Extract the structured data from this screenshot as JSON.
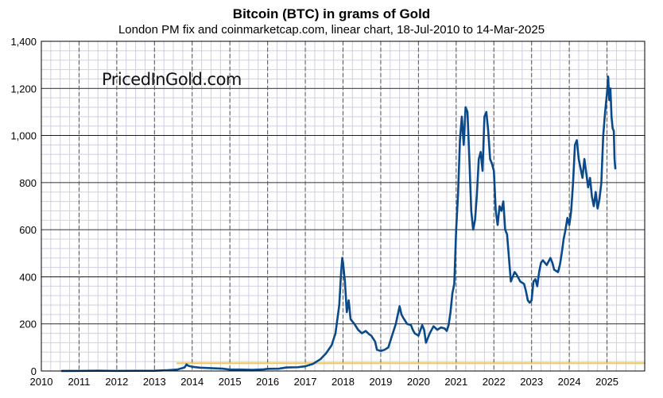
{
  "chart_data": {
    "type": "line",
    "title": "Bitcoin (BTC) in grams of Gold",
    "subtitle": "London PM fix and coinmarketcap.com, linear chart, 18-Jul-2010 to 14-Mar-2025",
    "watermark": "PricedInGold.com",
    "xlim": [
      2010.0,
      2026.0
    ],
    "ylim": [
      0,
      1400
    ],
    "x_ticks": [
      "2010",
      "2011",
      "2012",
      "2013",
      "2014",
      "2015",
      "2016",
      "2017",
      "2018",
      "2019",
      "2020",
      "2021",
      "2022",
      "2023",
      "2024",
      "2025"
    ],
    "y_ticks": [
      "0",
      "200",
      "400",
      "600",
      "800",
      "1,000",
      "1,200",
      "1,400"
    ],
    "grid": true,
    "legend": "none",
    "series": [
      {
        "color": "#0a4a8a",
        "points": [
          [
            2010.55,
            0.2
          ],
          [
            2011.0,
            0.4
          ],
          [
            2011.45,
            1.2
          ],
          [
            2011.7,
            0.8
          ],
          [
            2012.0,
            0.4
          ],
          [
            2012.5,
            0.8
          ],
          [
            2013.0,
            1.2
          ],
          [
            2013.3,
            3
          ],
          [
            2013.6,
            6
          ],
          [
            2013.8,
            15
          ],
          [
            2013.85,
            28
          ],
          [
            2013.9,
            22
          ],
          [
            2014.0,
            18
          ],
          [
            2014.2,
            14
          ],
          [
            2014.5,
            12
          ],
          [
            2014.8,
            10
          ],
          [
            2015.0,
            6
          ],
          [
            2015.3,
            6
          ],
          [
            2015.6,
            5
          ],
          [
            2015.9,
            7
          ],
          [
            2016.0,
            9
          ],
          [
            2016.3,
            10
          ],
          [
            2016.5,
            15
          ],
          [
            2016.8,
            16
          ],
          [
            2017.0,
            20
          ],
          [
            2017.2,
            30
          ],
          [
            2017.4,
            50
          ],
          [
            2017.55,
            75
          ],
          [
            2017.7,
            110
          ],
          [
            2017.8,
            160
          ],
          [
            2017.9,
            280
          ],
          [
            2017.95,
            420
          ],
          [
            2017.98,
            480
          ],
          [
            2018.0,
            460
          ],
          [
            2018.05,
            380
          ],
          [
            2018.1,
            250
          ],
          [
            2018.15,
            300
          ],
          [
            2018.2,
            220
          ],
          [
            2018.3,
            200
          ],
          [
            2018.4,
            175
          ],
          [
            2018.5,
            160
          ],
          [
            2018.6,
            170
          ],
          [
            2018.7,
            155
          ],
          [
            2018.75,
            150
          ],
          [
            2018.85,
            125
          ],
          [
            2018.9,
            90
          ],
          [
            2019.0,
            85
          ],
          [
            2019.1,
            90
          ],
          [
            2019.2,
            100
          ],
          [
            2019.3,
            150
          ],
          [
            2019.4,
            200
          ],
          [
            2019.5,
            275
          ],
          [
            2019.55,
            240
          ],
          [
            2019.6,
            225
          ],
          [
            2019.7,
            200
          ],
          [
            2019.8,
            195
          ],
          [
            2019.85,
            175
          ],
          [
            2019.9,
            160
          ],
          [
            2020.0,
            150
          ],
          [
            2020.1,
            195
          ],
          [
            2020.15,
            175
          ],
          [
            2020.2,
            120
          ],
          [
            2020.3,
            160
          ],
          [
            2020.4,
            190
          ],
          [
            2020.5,
            175
          ],
          [
            2020.6,
            185
          ],
          [
            2020.7,
            180
          ],
          [
            2020.75,
            170
          ],
          [
            2020.8,
            195
          ],
          [
            2020.85,
            250
          ],
          [
            2020.9,
            330
          ],
          [
            2020.95,
            370
          ],
          [
            2021.0,
            600
          ],
          [
            2021.05,
            750
          ],
          [
            2021.1,
            980
          ],
          [
            2021.15,
            1080
          ],
          [
            2021.2,
            960
          ],
          [
            2021.25,
            1120
          ],
          [
            2021.3,
            1100
          ],
          [
            2021.35,
            900
          ],
          [
            2021.4,
            680
          ],
          [
            2021.45,
            600
          ],
          [
            2021.5,
            640
          ],
          [
            2021.55,
            750
          ],
          [
            2021.6,
            900
          ],
          [
            2021.65,
            930
          ],
          [
            2021.7,
            850
          ],
          [
            2021.75,
            1080
          ],
          [
            2021.8,
            1100
          ],
          [
            2021.85,
            1020
          ],
          [
            2021.9,
            900
          ],
          [
            2021.95,
            880
          ],
          [
            2022.0,
            850
          ],
          [
            2022.05,
            680
          ],
          [
            2022.1,
            620
          ],
          [
            2022.15,
            700
          ],
          [
            2022.2,
            680
          ],
          [
            2022.25,
            720
          ],
          [
            2022.3,
            600
          ],
          [
            2022.35,
            580
          ],
          [
            2022.4,
            480
          ],
          [
            2022.45,
            380
          ],
          [
            2022.5,
            400
          ],
          [
            2022.55,
            420
          ],
          [
            2022.6,
            410
          ],
          [
            2022.65,
            395
          ],
          [
            2022.7,
            380
          ],
          [
            2022.75,
            375
          ],
          [
            2022.8,
            370
          ],
          [
            2022.85,
            340
          ],
          [
            2022.9,
            300
          ],
          [
            2022.95,
            290
          ],
          [
            2023.0,
            300
          ],
          [
            2023.05,
            380
          ],
          [
            2023.1,
            390
          ],
          [
            2023.15,
            360
          ],
          [
            2023.2,
            420
          ],
          [
            2023.25,
            460
          ],
          [
            2023.3,
            470
          ],
          [
            2023.4,
            450
          ],
          [
            2023.5,
            480
          ],
          [
            2023.55,
            460
          ],
          [
            2023.6,
            430
          ],
          [
            2023.7,
            420
          ],
          [
            2023.75,
            450
          ],
          [
            2023.8,
            500
          ],
          [
            2023.85,
            560
          ],
          [
            2023.9,
            600
          ],
          [
            2023.95,
            650
          ],
          [
            2024.0,
            620
          ],
          [
            2024.05,
            680
          ],
          [
            2024.1,
            800
          ],
          [
            2024.15,
            960
          ],
          [
            2024.2,
            980
          ],
          [
            2024.25,
            900
          ],
          [
            2024.3,
            860
          ],
          [
            2024.35,
            820
          ],
          [
            2024.4,
            900
          ],
          [
            2024.45,
            840
          ],
          [
            2024.5,
            780
          ],
          [
            2024.55,
            820
          ],
          [
            2024.6,
            740
          ],
          [
            2024.65,
            700
          ],
          [
            2024.7,
            760
          ],
          [
            2024.75,
            690
          ],
          [
            2024.8,
            730
          ],
          [
            2024.85,
            800
          ],
          [
            2024.9,
            1000
          ],
          [
            2024.95,
            1100
          ],
          [
            2025.0,
            1180
          ],
          [
            2025.03,
            1250
          ],
          [
            2025.06,
            1150
          ],
          [
            2025.09,
            1200
          ],
          [
            2025.12,
            1080
          ],
          [
            2025.15,
            1030
          ],
          [
            2025.18,
            1020
          ],
          [
            2025.2,
            900
          ],
          [
            2025.22,
            860
          ]
        ]
      },
      {
        "color": "#f5c84c",
        "points": [
          [
            2013.6,
            33
          ],
          [
            2026.0,
            33
          ]
        ]
      }
    ]
  }
}
